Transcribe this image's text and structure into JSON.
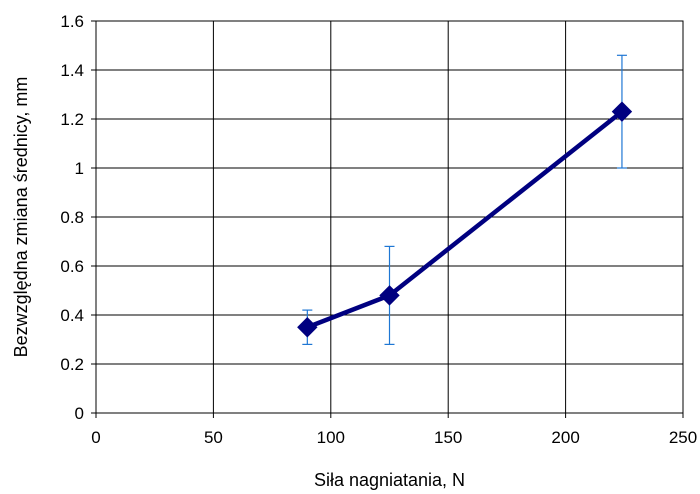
{
  "chart_data": {
    "type": "line",
    "title": "",
    "xlabel": "Siła nagniatania, N",
    "ylabel": "Bezwzględna zmiana średnicy, mm",
    "xlim": [
      0,
      250
    ],
    "ylim": [
      0,
      1.6
    ],
    "x_ticks": [
      "0",
      "50",
      "100",
      "150",
      "200",
      "250"
    ],
    "y_ticks": [
      "0",
      "0.2",
      "0.4",
      "0.6",
      "0.8",
      "1",
      "1.2",
      "1.4",
      "1.6"
    ],
    "grid": true,
    "legend": "none",
    "series": [
      {
        "x": [
          90,
          125,
          224
        ],
        "y": [
          0.35,
          0.48,
          1.23
        ],
        "error_low": [
          0.28,
          0.28,
          1.0
        ],
        "error_high": [
          0.42,
          0.68,
          1.46
        ],
        "color": "#000080",
        "marker": "diamond"
      }
    ],
    "error_bar_color": "#1f77d4"
  }
}
